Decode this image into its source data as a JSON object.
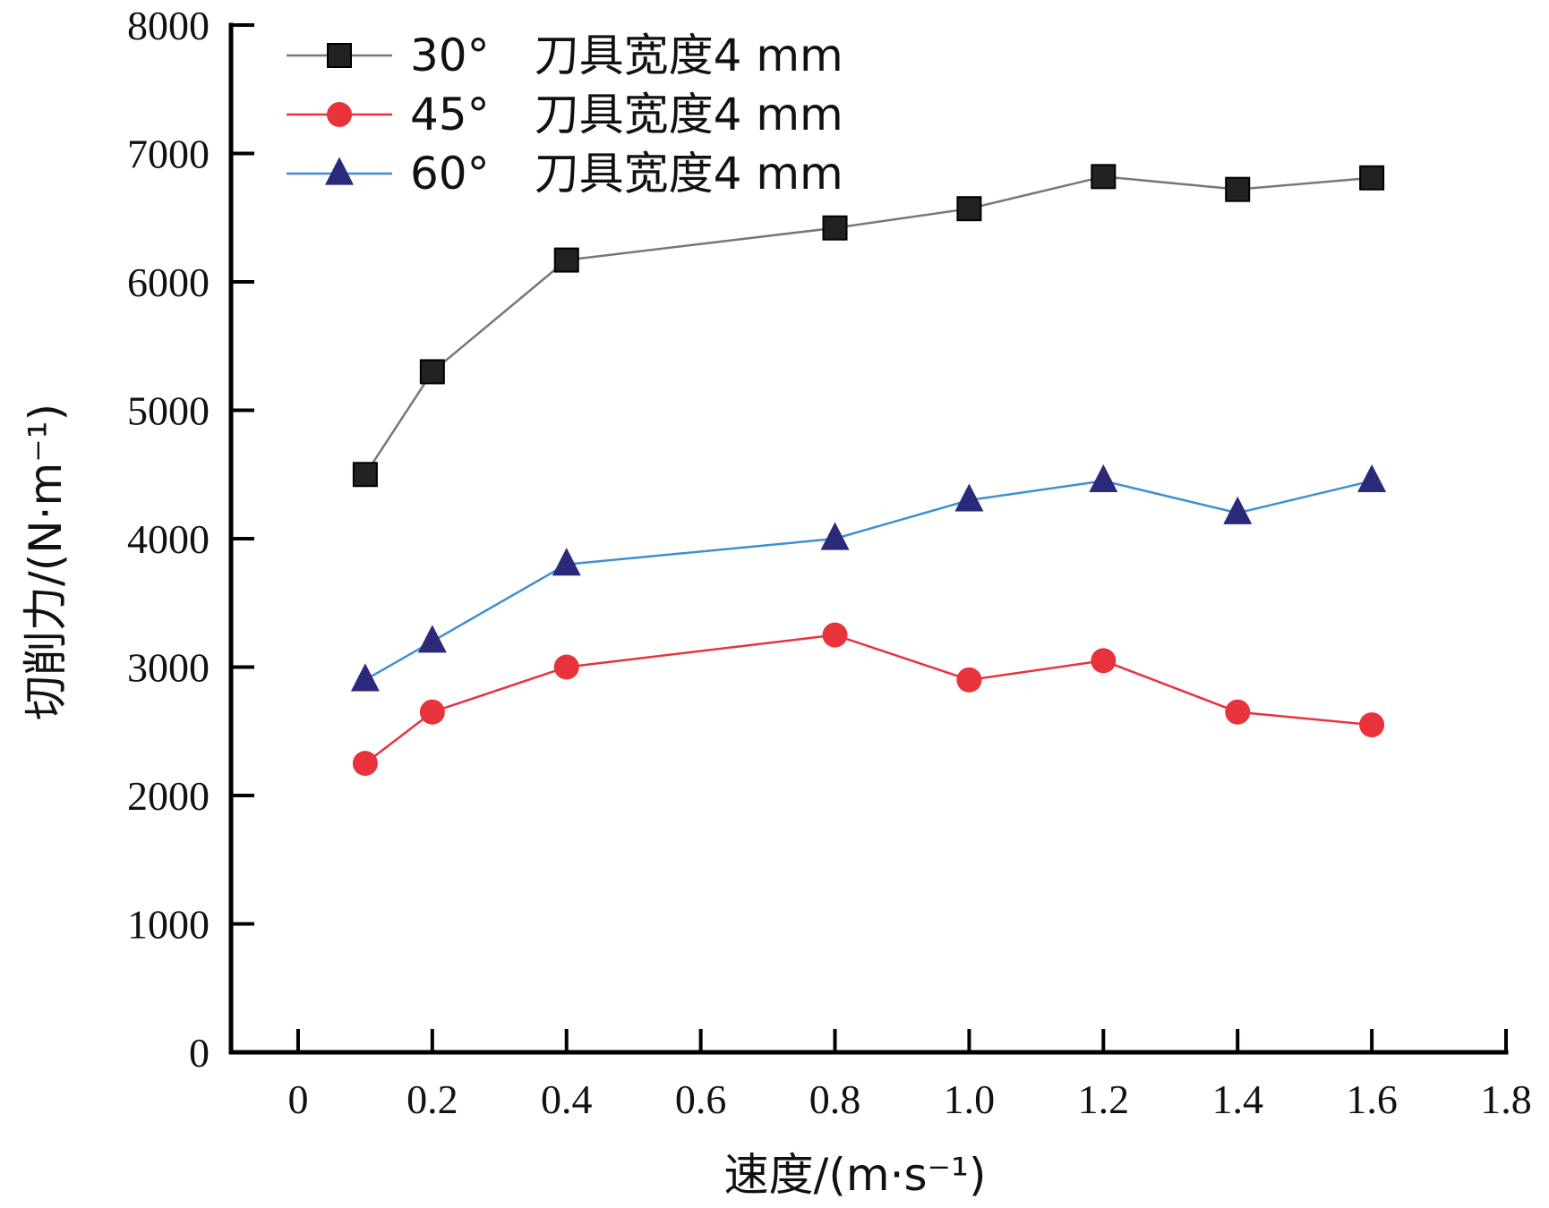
{
  "chart_data": {
    "type": "line",
    "title": "",
    "xlabel": "速度/(m·s⁻¹)",
    "ylabel": "切削力/(N·m⁻¹)",
    "xlim": [
      -0.1,
      1.8
    ],
    "ylim": [
      0,
      8000
    ],
    "x_ticks": [
      0,
      0.2,
      0.4,
      0.6,
      0.8,
      1.0,
      1.2,
      1.4,
      1.6,
      1.8
    ],
    "x_tick_labels": [
      "0",
      "0.2",
      "0.4",
      "0.6",
      "0.8",
      "1.0",
      "1.2",
      "1.4",
      "1.6",
      "1.8"
    ],
    "y_ticks": [
      0,
      1000,
      2000,
      3000,
      4000,
      5000,
      6000,
      7000,
      8000
    ],
    "y_tick_labels": [
      "0",
      "1000",
      "2000",
      "3000",
      "4000",
      "5000",
      "6000",
      "7000",
      "8000"
    ],
    "grid": false,
    "legend_position": "top-left",
    "x": [
      0.1,
      0.2,
      0.4,
      0.8,
      1.0,
      1.2,
      1.4,
      1.6
    ],
    "series": [
      {
        "name": "30°　刀具宽度4 mm",
        "marker": "square",
        "color": "#222222",
        "line_color": "#777777",
        "values": [
          4500,
          5300,
          6170,
          6420,
          6570,
          6820,
          6720,
          6810
        ]
      },
      {
        "name": "45°　刀具宽度4 mm",
        "marker": "circle",
        "color": "#e8323c",
        "line_color": "#e8323c",
        "values": [
          2250,
          2650,
          3000,
          3250,
          2900,
          3050,
          2650,
          2550
        ]
      },
      {
        "name": "60°　刀具宽度4 mm",
        "marker": "triangle",
        "color": "#2b2a7a",
        "line_color": "#3f8fcf",
        "values": [
          2900,
          3200,
          3800,
          4000,
          4300,
          4450,
          4200,
          4450
        ]
      }
    ]
  }
}
